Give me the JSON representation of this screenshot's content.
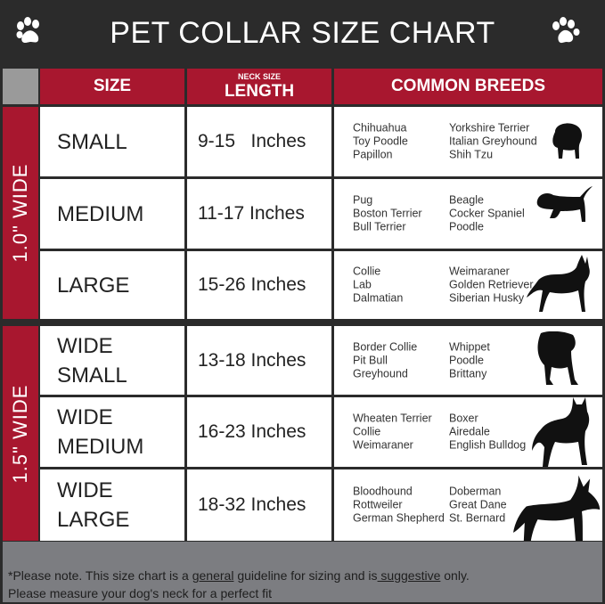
{
  "title": "PET COLLAR SIZE CHART",
  "headers": {
    "size": "SIZE",
    "neck_small": "NECK SIZE",
    "neck_big": "LENGTH",
    "breeds": "COMMON BREEDS"
  },
  "groups": [
    {
      "label": "1.0\" WIDE"
    },
    {
      "label": "1.5\" WIDE"
    }
  ],
  "rows": [
    {
      "size": [
        "SMALL"
      ],
      "length": "9-15   Inches",
      "breeds_a": [
        "Chihuahua",
        "Toy Poodle",
        "Papillon"
      ],
      "breeds_b": [
        "Yorkshire Terrier",
        "Italian Greyhound",
        "Shih Tzu"
      ],
      "icon": "small-dog-silhouette-icon"
    },
    {
      "size": [
        "MEDIUM"
      ],
      "length": "11-17 Inches",
      "breeds_a": [
        "Pug",
        "Boston Terrier",
        "Bull Terrier"
      ],
      "breeds_b": [
        "Beagle",
        "Cocker Spaniel",
        "Poodle"
      ],
      "icon": "dachshund-silhouette-icon"
    },
    {
      "size": [
        "LARGE"
      ],
      "length": "15-26 Inches",
      "breeds_a": [
        "Collie",
        "Lab",
        "Dalmatian"
      ],
      "breeds_b": [
        "Weimaraner",
        "Golden Retriever",
        "Siberian Husky"
      ],
      "icon": "shepherd-silhouette-icon"
    },
    {
      "size": [
        "WIDE",
        "SMALL"
      ],
      "length": "13-18 Inches",
      "breeds_a": [
        "Border Collie",
        "Pit Bull",
        "Greyhound"
      ],
      "breeds_b": [
        "Whippet",
        "Poodle",
        "Brittany"
      ],
      "icon": "bulldog-silhouette-icon"
    },
    {
      "size": [
        "WIDE",
        "MEDIUM"
      ],
      "length": "16-23 Inches",
      "breeds_a": [
        "Wheaten Terrier",
        "Collie",
        "Weimaraner"
      ],
      "breeds_b": [
        "Boxer",
        "Airedale",
        "English Bulldog"
      ],
      "icon": "pitbull-silhouette-icon"
    },
    {
      "size": [
        "WIDE",
        "LARGE"
      ],
      "length": "18-32 Inches",
      "breeds_a": [
        "Bloodhound",
        "Rottweiler",
        "German Shepherd"
      ],
      "breeds_b": [
        "Doberman",
        "Great Dane",
        "St. Bernard"
      ],
      "icon": "doberman-silhouette-icon"
    }
  ],
  "footer": {
    "p1": "*Please note. This size chart is a ",
    "u1": "general",
    "p2": " guideline for sizing and is",
    "u2": " suggestive",
    "p3": " only.",
    "line2": "Please measure your dog's neck for a perfect fit"
  },
  "colors": {
    "header_bg": "#2b2b2b",
    "accent_red": "#a8172f",
    "footer_bg": "#7c7d81"
  }
}
